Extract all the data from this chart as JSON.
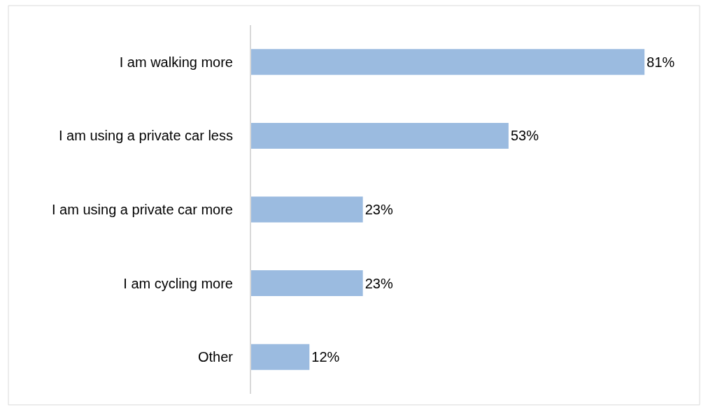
{
  "chart_data": {
    "type": "bar",
    "orientation": "horizontal",
    "categories": [
      "I am walking more",
      "I am using a private car less",
      "I am using a private car more",
      "I am cycling more",
      "Other"
    ],
    "values": [
      81,
      53,
      23,
      23,
      12
    ],
    "value_labels": [
      "81%",
      "53%",
      "23%",
      "23%",
      "12%"
    ],
    "color": "#9bbbe0"
  }
}
